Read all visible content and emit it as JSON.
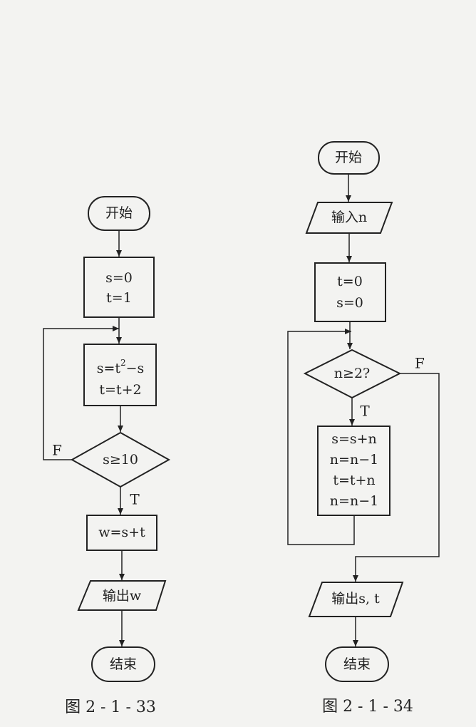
{
  "figure_33": {
    "caption": "图 2 - 1 - 33",
    "start": "开始",
    "init_line1": "s=0",
    "init_line2": "t=1",
    "body_line1_pre": "s=t",
    "body_line1_sup": "2",
    "body_line1_post": "−s",
    "body_line2": "t=t+2",
    "condition": "s≥10",
    "false_label": "F",
    "true_label": "T",
    "assign": "w=s+t",
    "output": "输出w",
    "end": "结束"
  },
  "figure_34": {
    "caption": "图 2 - 1 - 34",
    "start": "开始",
    "input": "输入n",
    "init_line1": "t=0",
    "init_line2": "s=0",
    "condition": "n≥2?",
    "false_label": "F",
    "true_label": "T",
    "loop_line1": "s=s+n",
    "loop_line2": "n=n−1",
    "loop_line3": "t=t+n",
    "loop_line4": "n=n−1",
    "output": "输出s, t",
    "end": "结束"
  }
}
